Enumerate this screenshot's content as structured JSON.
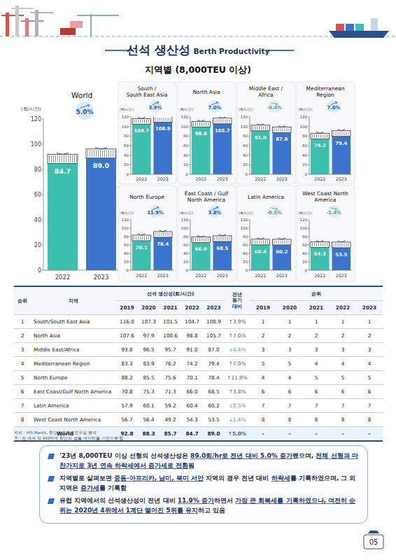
{
  "header": {
    "title": "선석 생산성",
    "title_en": "Berth Productivity",
    "subtitle": "지역별 (8,000TEU 이상)"
  },
  "chart_data": [
    {
      "type": "bar",
      "title": [
        "World"
      ],
      "y_label": "(회/시간)",
      "annotation": "5.0%",
      "categories": [
        "2022",
        "2023"
      ],
      "values": [
        84.7,
        89.0
      ],
      "value_labels": [
        "84.7",
        "89.0"
      ],
      "colors": [
        "#3dbfae",
        "#3a74cc"
      ],
      "ylim": [
        0,
        120
      ],
      "yticks": [
        0,
        20,
        40,
        60,
        80,
        100,
        120
      ],
      "grid": false,
      "data_labels": true
    },
    {
      "type": "bar",
      "title": [
        "South /",
        "South East Asia"
      ],
      "y_label": "(회/시간)",
      "annotation": "3.9%",
      "categories": [
        "2022",
        "2023"
      ],
      "values": [
        104.7,
        108.9
      ],
      "value_labels": [
        "104.7",
        "108.9"
      ],
      "colors": [
        "#3dbfae",
        "#3a74cc"
      ],
      "ylim": [
        0,
        120
      ],
      "yticks": [
        0,
        20,
        40,
        60,
        80,
        100,
        120
      ],
      "grid": false,
      "data_labels": true
    },
    {
      "type": "bar",
      "title": [
        "North Asia"
      ],
      "y_label": "(회/시간)",
      "annotation": "7.0%",
      "categories": [
        "2022",
        "2023"
      ],
      "values": [
        98.8,
        105.7
      ],
      "value_labels": [
        "98.8",
        "105.7"
      ],
      "colors": [
        "#3dbfae",
        "#3a74cc"
      ],
      "ylim": [
        0,
        120
      ],
      "yticks": [
        0,
        20,
        40,
        60,
        80,
        100,
        120
      ],
      "grid": false,
      "data_labels": true
    },
    {
      "type": "bar",
      "title": [
        "Middle East /",
        "Africa"
      ],
      "y_label": "(회/시간)",
      "annotation": "-4.4%",
      "categories": [
        "2022",
        "2023"
      ],
      "values": [
        91.0,
        87.0
      ],
      "value_labels": [
        "91.0",
        "87.0"
      ],
      "colors": [
        "#3dbfae",
        "#3a74cc"
      ],
      "ylim": [
        0,
        120
      ],
      "yticks": [
        0,
        20,
        40,
        60,
        80,
        100,
        120
      ],
      "grid": false,
      "data_labels": true
    },
    {
      "type": "bar",
      "title": [
        "Mediterranean",
        "Region"
      ],
      "y_label": "(회/시간)",
      "annotation": "7.0%",
      "categories": [
        "2022",
        "2023"
      ],
      "values": [
        74.2,
        79.4
      ],
      "value_labels": [
        "74.2",
        "79.4"
      ],
      "colors": [
        "#3dbfae",
        "#3a74cc"
      ],
      "ylim": [
        0,
        120
      ],
      "yticks": [
        0,
        20,
        40,
        60,
        80,
        100,
        120
      ],
      "grid": false,
      "data_labels": true
    },
    {
      "type": "bar",
      "title": [
        "North Europe"
      ],
      "y_label": "(회/시간)",
      "annotation": "11.9%",
      "categories": [
        "2022",
        "2023"
      ],
      "values": [
        70.1,
        78.4
      ],
      "value_labels": [
        "70.1",
        "78.4"
      ],
      "colors": [
        "#3dbfae",
        "#3a74cc"
      ],
      "ylim": [
        0,
        120
      ],
      "yticks": [
        0,
        20,
        40,
        60,
        80,
        100,
        120
      ],
      "grid": false,
      "data_labels": true
    },
    {
      "type": "bar",
      "title": [
        "East Coast / Gulf",
        "North America"
      ],
      "y_label": "(회/시간)",
      "annotation": "3.8%",
      "categories": [
        "2022",
        "2023"
      ],
      "values": [
        66.0,
        68.5
      ],
      "value_labels": [
        "66.0",
        "68.5"
      ],
      "colors": [
        "#3dbfae",
        "#3a74cc"
      ],
      "ylim": [
        0,
        120
      ],
      "yticks": [
        0,
        20,
        40,
        60,
        80,
        100,
        120
      ],
      "grid": false,
      "data_labels": true
    },
    {
      "type": "bar",
      "title": [
        "Latin America"
      ],
      "y_label": "(회/시간)",
      "annotation": "-0.5%",
      "categories": [
        "2022",
        "2023"
      ],
      "values": [
        60.4,
        60.2
      ],
      "value_labels": [
        "60.4",
        "60.2"
      ],
      "colors": [
        "#3dbfae",
        "#3a74cc"
      ],
      "ylim": [
        0,
        120
      ],
      "yticks": [
        0,
        20,
        40,
        60,
        80,
        100,
        120
      ],
      "grid": false,
      "data_labels": true
    },
    {
      "type": "bar",
      "title": [
        "West Coast North",
        "America"
      ],
      "y_label": "(회/시간)",
      "annotation": "-1.4%",
      "categories": [
        "2022",
        "2023"
      ],
      "values": [
        54.3,
        53.5
      ],
      "value_labels": [
        "54.3",
        "53.5"
      ],
      "colors": [
        "#3dbfae",
        "#3a74cc"
      ],
      "ylim": [
        0,
        120
      ],
      "yticks": [
        0,
        20,
        40,
        60,
        80,
        100,
        120
      ],
      "grid": false,
      "data_labels": true
    }
  ],
  "table": {
    "headers": {
      "rank": "순위",
      "region": "지역",
      "productivity": "선석 생산성(회/시간)",
      "productivity_years": [
        "2019",
        "2020",
        "2021",
        "2022",
        "2023"
      ],
      "change": [
        "전년",
        "동기",
        "대비"
      ],
      "ranking": "순위",
      "ranking_years": [
        "2019",
        "2020",
        "2021",
        "2022",
        "2023"
      ]
    },
    "rows": [
      {
        "rank": "1",
        "region": "South/South East Asia",
        "values": [
          "116.0",
          "107.3",
          "101.5",
          "104.7",
          "108.9"
        ],
        "change": "↑3.9%",
        "ranks": [
          "1",
          "1",
          "1",
          "1",
          "1"
        ]
      },
      {
        "rank": "2",
        "region": "North Asia",
        "values": [
          "107.6",
          "97.9",
          "100.6",
          "98.8",
          "105.7"
        ],
        "change": "↑7.0%",
        "ranks": [
          "2",
          "2",
          "2",
          "2",
          "2"
        ]
      },
      {
        "rank": "3",
        "region": "Middle East/Africa",
        "values": [
          "93.8",
          "96.5",
          "95.7",
          "91.0",
          "87.0"
        ],
        "change": "↓4.4%",
        "ranks": [
          "3",
          "3",
          "3",
          "3",
          "3"
        ]
      },
      {
        "rank": "4",
        "region": "Mediterranean Region",
        "values": [
          "83.3",
          "83.9",
          "76.2",
          "74.2",
          "79.4"
        ],
        "change": "↑7.0%",
        "ranks": [
          "5",
          "5",
          "4",
          "4",
          "4"
        ]
      },
      {
        "rank": "5",
        "region": "North Europe",
        "values": [
          "88.2",
          "85.5",
          "75.6",
          "70.1",
          "78.4"
        ],
        "change": "↑11.9%",
        "ranks": [
          "4",
          "4",
          "5",
          "5",
          "5"
        ]
      },
      {
        "rank": "6",
        "region": "East Coast/Gulf North America",
        "values": [
          "70.8",
          "75.3",
          "71.3",
          "66.0",
          "68.5"
        ],
        "change": "↑3.8%",
        "ranks": [
          "6",
          "6",
          "6",
          "6",
          "6"
        ]
      },
      {
        "rank": "7",
        "region": "Latin America",
        "values": [
          "57.9",
          "60.1",
          "59.2",
          "60.4",
          "60.2"
        ],
        "change": "↓0.5%",
        "ranks": [
          "7",
          "7",
          "7",
          "7",
          "7"
        ]
      },
      {
        "rank": "8",
        "region": "West Coast North America",
        "values": [
          "56.7",
          "56.4",
          "49.2",
          "54.3",
          "53.5"
        ],
        "change": "↓1.4%",
        "ranks": [
          "8",
          "8",
          "8",
          "8",
          "8"
        ]
      }
    ],
    "world": {
      "region": "World",
      "values": [
        "92.8",
        "88.3",
        "85.7",
        "84.7",
        "89.0"
      ],
      "change": "↑5.0%",
      "ranks": [
        "–",
        "–",
        "–",
        "–",
        "–"
      ]
    }
  },
  "notes": [
    "자료 : IHS Markit, 항만수요분석연구실 분석",
    "주 : 전 세계 약 400여개 항만의 샘플 데이터를 기반으로 함"
  ],
  "bullets": [
    [
      {
        "text": "'23년 8,000TEU 이상 선형의 선석생산성은 ",
        "strong": false
      },
      {
        "text": "89.0회/hr로 전년 대비 5.0% 증가",
        "strong": true
      },
      {
        "text": "했으며, ",
        "strong": false
      },
      {
        "text": "전체 선형과 마찬가지로 3년 연속 하락세에서 증가세로 전환",
        "strong": true
      },
      {
        "text": "됨",
        "strong": false
      }
    ],
    [
      {
        "text": "지역별로 살펴보면 ",
        "strong": false
      },
      {
        "text": "중동·아프리카, 남미, 북미 서안",
        "strong": true
      },
      {
        "text": " 지역의 경우 전년 대비 ",
        "strong": false
      },
      {
        "text": "하락세",
        "strong": true
      },
      {
        "text": "를 기록하였으며, 그 외 지역은 ",
        "strong": false
      },
      {
        "text": "증가세",
        "strong": true
      },
      {
        "text": "를 기록함",
        "strong": false
      }
    ],
    [
      {
        "text": "유럽 지역에서의 선석생산성이 전년 대비 ",
        "strong": false
      },
      {
        "text": "11.9% 증가",
        "strong": true
      },
      {
        "text": "하면서 ",
        "strong": false
      },
      {
        "text": "가장 큰 회복세를 기록",
        "strong": true
      },
      {
        "text": "하였으나, 여전히 순위는 2020년 4위에서 1계단 떨어진 5위를 유지",
        "strong": true
      },
      {
        "text": "하고 있음",
        "strong": false
      }
    ]
  ],
  "page_number": "05"
}
